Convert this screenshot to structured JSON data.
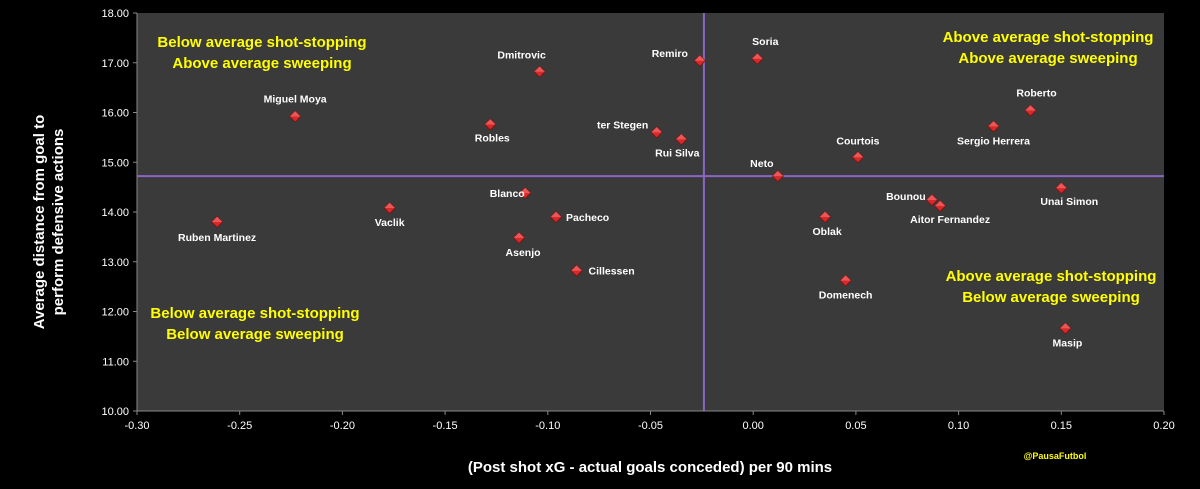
{
  "chart_data": {
    "type": "scatter",
    "xlabel": "(Post shot xG - actual goals conceded) per 90 mins",
    "ylabel_lines": [
      "Average distance from goal to",
      "perform defensive actions"
    ],
    "xlim": [
      -0.3,
      0.2
    ],
    "ylim": [
      10.0,
      18.0
    ],
    "x_ticks": [
      "-0.30",
      "-0.25",
      "-0.20",
      "-0.15",
      "-0.10",
      "-0.05",
      "0.00",
      "0.05",
      "0.10",
      "0.15",
      "0.20"
    ],
    "y_ticks": [
      "10.00",
      "11.00",
      "12.00",
      "13.00",
      "14.00",
      "15.00",
      "16.00",
      "17.00",
      "18.00"
    ],
    "x_tick_values": [
      -0.3,
      -0.25,
      -0.2,
      -0.15,
      -0.1,
      -0.05,
      0.0,
      0.05,
      0.1,
      0.15,
      0.2
    ],
    "y_tick_values": [
      10,
      11,
      12,
      13,
      14,
      15,
      16,
      17,
      18
    ],
    "average_x": -0.024,
    "average_y": 14.72,
    "grid": false,
    "colors": {
      "plot_background": "#3a3a3a",
      "page_background": "#000000",
      "marker": "#d62a2a",
      "average_lines": "#8a66c4",
      "quadrant_text": "#ffff00",
      "text": "#ffffff"
    },
    "points": [
      {
        "name": "Miguel Moya",
        "x": -0.223,
        "y": 15.92
      },
      {
        "name": "Dmitrovic",
        "x": -0.104,
        "y": 16.82
      },
      {
        "name": "Remiro",
        "x": -0.026,
        "y": 17.04
      },
      {
        "name": "Soria",
        "x": 0.002,
        "y": 17.08
      },
      {
        "name": "Roberto",
        "x": 0.135,
        "y": 16.04
      },
      {
        "name": "Sergio Herrera",
        "x": 0.117,
        "y": 15.72
      },
      {
        "name": "Robles",
        "x": -0.128,
        "y": 15.76
      },
      {
        "name": "ter Stegen",
        "x": -0.047,
        "y": 15.6
      },
      {
        "name": "Rui Silva",
        "x": -0.035,
        "y": 15.46
      },
      {
        "name": "Courtois",
        "x": 0.051,
        "y": 15.1
      },
      {
        "name": "Neto",
        "x": 0.012,
        "y": 14.72
      },
      {
        "name": "Blanco",
        "x": -0.111,
        "y": 14.38
      },
      {
        "name": "Ruben Martinez",
        "x": -0.261,
        "y": 13.8
      },
      {
        "name": "Vaclik",
        "x": -0.177,
        "y": 14.08
      },
      {
        "name": "Pacheco",
        "x": -0.096,
        "y": 13.9
      },
      {
        "name": "Asenjo",
        "x": -0.114,
        "y": 13.48
      },
      {
        "name": "Cillessen",
        "x": -0.086,
        "y": 12.82
      },
      {
        "name": "Bounou",
        "x": 0.087,
        "y": 14.24
      },
      {
        "name": "Aitor Fernandez",
        "x": 0.091,
        "y": 14.12
      },
      {
        "name": "Unai Simon",
        "x": 0.15,
        "y": 14.48
      },
      {
        "name": "Oblak",
        "x": 0.035,
        "y": 13.9
      },
      {
        "name": "Domenech",
        "x": 0.045,
        "y": 12.62
      },
      {
        "name": "Masip",
        "x": 0.152,
        "y": 11.66
      }
    ],
    "quadrant_labels": [
      {
        "id": "top-left",
        "lines": [
          "Below average shot-stopping",
          "Above average sweeping"
        ]
      },
      {
        "id": "top-right",
        "lines": [
          "Above average shot-stopping",
          "Above average sweeping"
        ]
      },
      {
        "id": "bottom-right",
        "lines": [
          "Above average shot-stopping",
          "Below average sweeping"
        ]
      },
      {
        "id": "bottom-left",
        "lines": [
          "Below average shot-stopping",
          "Below average sweeping"
        ]
      }
    ],
    "credit": "@PausaFutbol"
  }
}
